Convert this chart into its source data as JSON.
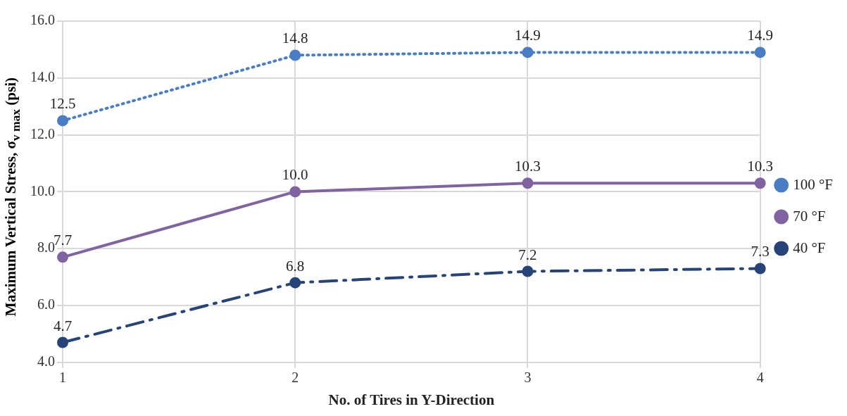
{
  "chart_data": {
    "type": "line",
    "xlabel": "No. of Tires in Y-Direction",
    "ylabel": "Maximum Vertical Stress, σ$_{v max}$ (psi)",
    "categories": [
      "1",
      "2",
      "3",
      "4"
    ],
    "series": [
      {
        "name": "100 °F",
        "color": "#4a7ec4",
        "line_style": "dotted",
        "values": [
          12.5,
          14.8,
          14.9,
          14.9
        ],
        "value_labels": [
          "12.5",
          "14.8",
          "14.9",
          "14.9"
        ]
      },
      {
        "name": "70 °F",
        "color": "#8064a2",
        "line_style": "solid",
        "values": [
          7.7,
          10.0,
          10.3,
          10.3
        ],
        "value_labels": [
          "7.7",
          "10.0",
          "10.3",
          "10.3"
        ]
      },
      {
        "name": "40 °F",
        "color": "#264478",
        "line_style": "dashed",
        "values": [
          4.7,
          6.8,
          7.2,
          7.3
        ],
        "value_labels": [
          "4.7",
          "6.8",
          "7.2",
          "7.3"
        ]
      }
    ],
    "ylim": [
      4,
      16
    ],
    "yticks": [
      {
        "value": 4,
        "label": "4.0"
      },
      {
        "value": 6,
        "label": "6.0"
      },
      {
        "value": 8,
        "label": "8.0"
      },
      {
        "value": 10,
        "label": "10.0"
      },
      {
        "value": 12,
        "label": "12.0"
      },
      {
        "value": 14,
        "label": "14.0"
      },
      {
        "value": 16,
        "label": "16.0"
      }
    ],
    "grid": true,
    "legend": "right",
    "marker": "circle"
  }
}
